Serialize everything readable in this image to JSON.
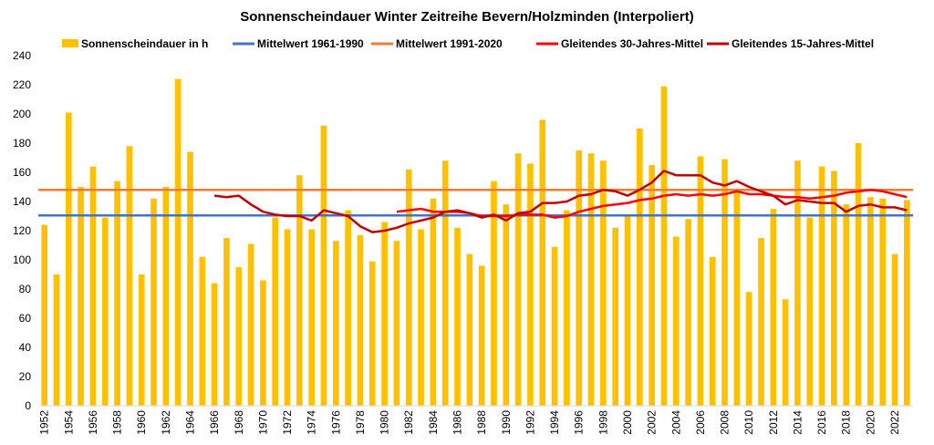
{
  "chart_data": {
    "type": "bar",
    "title": "Sonnenscheindauer Winter Zeitreihe Bevern/Holzminden (Interpoliert)",
    "xlabel": "",
    "ylabel": "",
    "ylim": [
      0,
      240
    ],
    "yticks": [
      0,
      20,
      40,
      60,
      80,
      100,
      120,
      140,
      160,
      180,
      200,
      220,
      240
    ],
    "grid": "none",
    "legend_position": "top",
    "colors": {
      "bars": "#ffc000",
      "mean_1961_1990": "#4472c4",
      "mean_1991_2020": "#ed7d31",
      "ma30": "#ff0000",
      "ma15": "#c00000"
    },
    "legend": [
      "Sonnenscheindauer in h",
      "Mittelwert 1961-1990",
      "Mittelwert 1991-2020",
      "Gleitendes 30-Jahres-Mittel",
      "Gleitendes 15-Jahres-Mittel"
    ],
    "categories": [
      "1952",
      "1953",
      "1954",
      "1955",
      "1956",
      "1957",
      "1958",
      "1959",
      "1960",
      "1961",
      "1962",
      "1963",
      "1964",
      "1965",
      "1966",
      "1967",
      "1968",
      "1969",
      "1970",
      "1971",
      "1972",
      "1973",
      "1974",
      "1975",
      "1976",
      "1977",
      "1978",
      "1979",
      "1980",
      "1981",
      "1982",
      "1983",
      "1984",
      "1985",
      "1986",
      "1987",
      "1988",
      "1989",
      "1990",
      "1991",
      "1992",
      "1993",
      "1994",
      "1995",
      "1996",
      "1997",
      "1998",
      "1999",
      "2000",
      "2001",
      "2002",
      "2003",
      "2004",
      "2005",
      "2006",
      "2007",
      "2008",
      "2009",
      "2010",
      "2011",
      "2012",
      "2013",
      "2014",
      "2015",
      "2016",
      "2017",
      "2018",
      "2019",
      "2020",
      "2021",
      "2022",
      "2023"
    ],
    "x_tick_labels": [
      "1952",
      "1954",
      "1956",
      "1958",
      "1960",
      "1962",
      "1964",
      "1966",
      "1968",
      "1970",
      "1972",
      "1974",
      "1976",
      "1978",
      "1980",
      "1982",
      "1984",
      "1986",
      "1988",
      "1990",
      "1992",
      "1994",
      "1996",
      "1998",
      "2000",
      "2002",
      "2004",
      "2006",
      "2008",
      "2010",
      "2012",
      "2014",
      "2016",
      "2018",
      "2020",
      "2022"
    ],
    "series": [
      {
        "name": "Sonnenscheindauer in h",
        "kind": "bar",
        "values": [
          124,
          90,
          201,
          150,
          164,
          129,
          154,
          178,
          90,
          142,
          150,
          224,
          174,
          102,
          84,
          115,
          95,
          111,
          86,
          129,
          121,
          158,
          121,
          192,
          113,
          134,
          117,
          99,
          126,
          113,
          162,
          121,
          142,
          168,
          122,
          104,
          96,
          154,
          138,
          173,
          166,
          196,
          109,
          134,
          175,
          173,
          168,
          122,
          130,
          190,
          165,
          219,
          116,
          128,
          171,
          102,
          169,
          147,
          78,
          115,
          135,
          73,
          168,
          129,
          164,
          161,
          138,
          180,
          143,
          142,
          104,
          141
        ]
      },
      {
        "name": "Mittelwert 1961-1990",
        "kind": "hline",
        "value": 130.5
      },
      {
        "name": "Mittelwert 1991-2020",
        "kind": "hline",
        "value": 148
      },
      {
        "name": "Gleitendes 30-Jahres-Mittel",
        "kind": "line",
        "values": [
          null,
          null,
          null,
          null,
          null,
          null,
          null,
          null,
          null,
          null,
          null,
          null,
          null,
          null,
          null,
          null,
          null,
          null,
          null,
          null,
          null,
          null,
          null,
          null,
          null,
          null,
          null,
          null,
          null,
          133,
          134,
          135,
          133,
          133,
          133,
          132,
          130,
          130,
          130,
          131,
          131,
          131,
          129,
          130,
          133,
          135,
          137,
          138,
          139,
          141,
          142,
          144,
          145,
          144,
          145,
          144,
          145,
          147,
          145,
          145,
          144,
          143,
          143,
          142,
          143,
          144,
          146,
          147,
          148,
          147,
          145,
          143
        ]
      },
      {
        "name": "Gleitendes 15-Jahres-Mittel",
        "kind": "line",
        "values": [
          null,
          null,
          null,
          null,
          null,
          null,
          null,
          null,
          null,
          null,
          null,
          null,
          null,
          null,
          144,
          143,
          144,
          138,
          133,
          131,
          130,
          130,
          127,
          134,
          132,
          130,
          123,
          119,
          120,
          122,
          125,
          127,
          129,
          133,
          134,
          132,
          129,
          131,
          127,
          132,
          133,
          139,
          139,
          140,
          144,
          145,
          148,
          147,
          144,
          148,
          153,
          161,
          158,
          158,
          158,
          153,
          151,
          154,
          150,
          147,
          144,
          138,
          141,
          140,
          139,
          139,
          133,
          137,
          138,
          136,
          136,
          134
        ]
      }
    ]
  }
}
